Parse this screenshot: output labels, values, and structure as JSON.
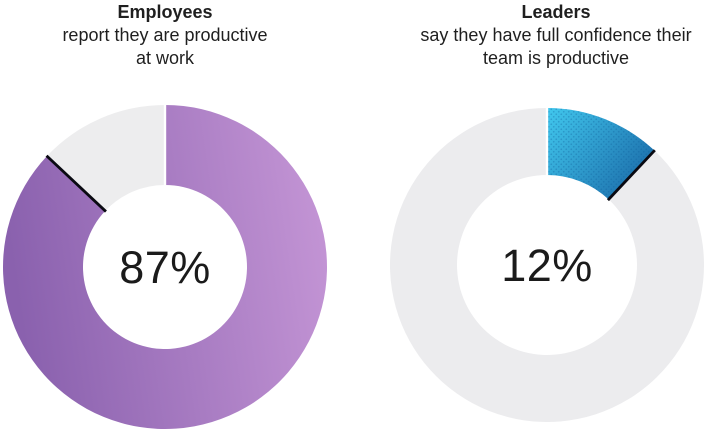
{
  "charts": [
    {
      "title": "Employees",
      "subtitle_line1": "report they are productive",
      "subtitle_line2": "at work",
      "center_label": "87%",
      "value_color_start": "#c596d6",
      "value_color_end": "#8a61ae",
      "remainder_color": "#ededee",
      "separator_color": "#0a0a12"
    },
    {
      "title": "Leaders",
      "subtitle_line1": "say they have full confidence their",
      "subtitle_line2": "team is productive",
      "center_label": "12%",
      "value_color_start": "#41c8ee",
      "value_color_end": "#1d71ad",
      "remainder_color": "#ececee",
      "separator_color": "#0a0a12"
    }
  ],
  "chart_data": [
    {
      "type": "pie",
      "donut": true,
      "title": "Employees report they are productive at work",
      "labels": [
        "Employees who report they are productive",
        "Remainder"
      ],
      "values": [
        87,
        13
      ],
      "center_label": "87%",
      "start_angle_deg": 0,
      "direction": "clockwise",
      "legend": "none"
    },
    {
      "type": "pie",
      "donut": true,
      "title": "Leaders say they have full confidence their team is productive",
      "labels": [
        "Leaders with full confidence team is productive",
        "Remainder"
      ],
      "values": [
        12,
        88
      ],
      "center_label": "12%",
      "start_angle_deg": 0,
      "direction": "clockwise",
      "legend": "none"
    }
  ]
}
